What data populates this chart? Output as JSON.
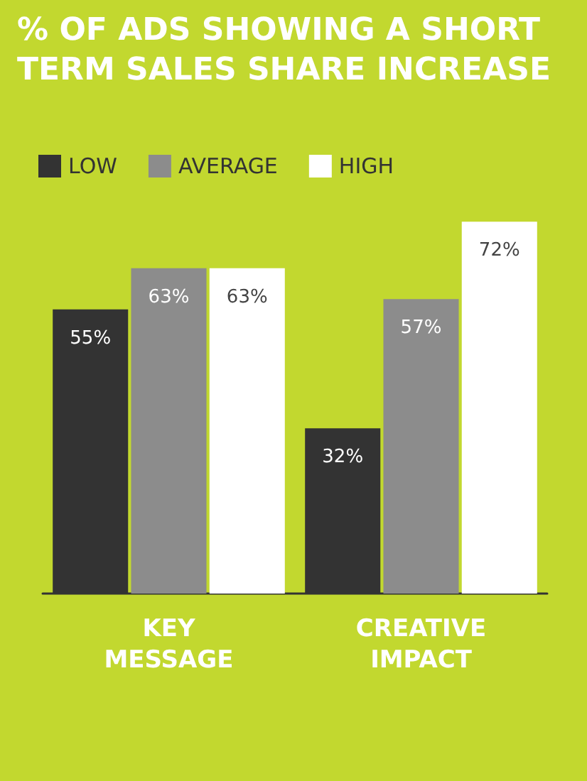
{
  "chart_data": {
    "type": "bar",
    "title": "% OF ADS SHOWING A SHORT TERM SALES SHARE INCREASE",
    "categories": [
      "KEY MESSAGE",
      "CREATIVE IMPACT"
    ],
    "series": [
      {
        "name": "LOW",
        "color": "#333333",
        "values": [
          55,
          32
        ],
        "value_labels": [
          "55%",
          "32%"
        ]
      },
      {
        "name": "AVERAGE",
        "color": "#8c8c8c",
        "values": [
          63,
          57
        ],
        "value_labels": [
          "63%",
          "57%"
        ]
      },
      {
        "name": "HIGH",
        "color": "#ffffff",
        "values": [
          63,
          72
        ],
        "value_labels": [
          "63%",
          "72%"
        ]
      }
    ],
    "grid": false,
    "legend": "top left"
  }
}
